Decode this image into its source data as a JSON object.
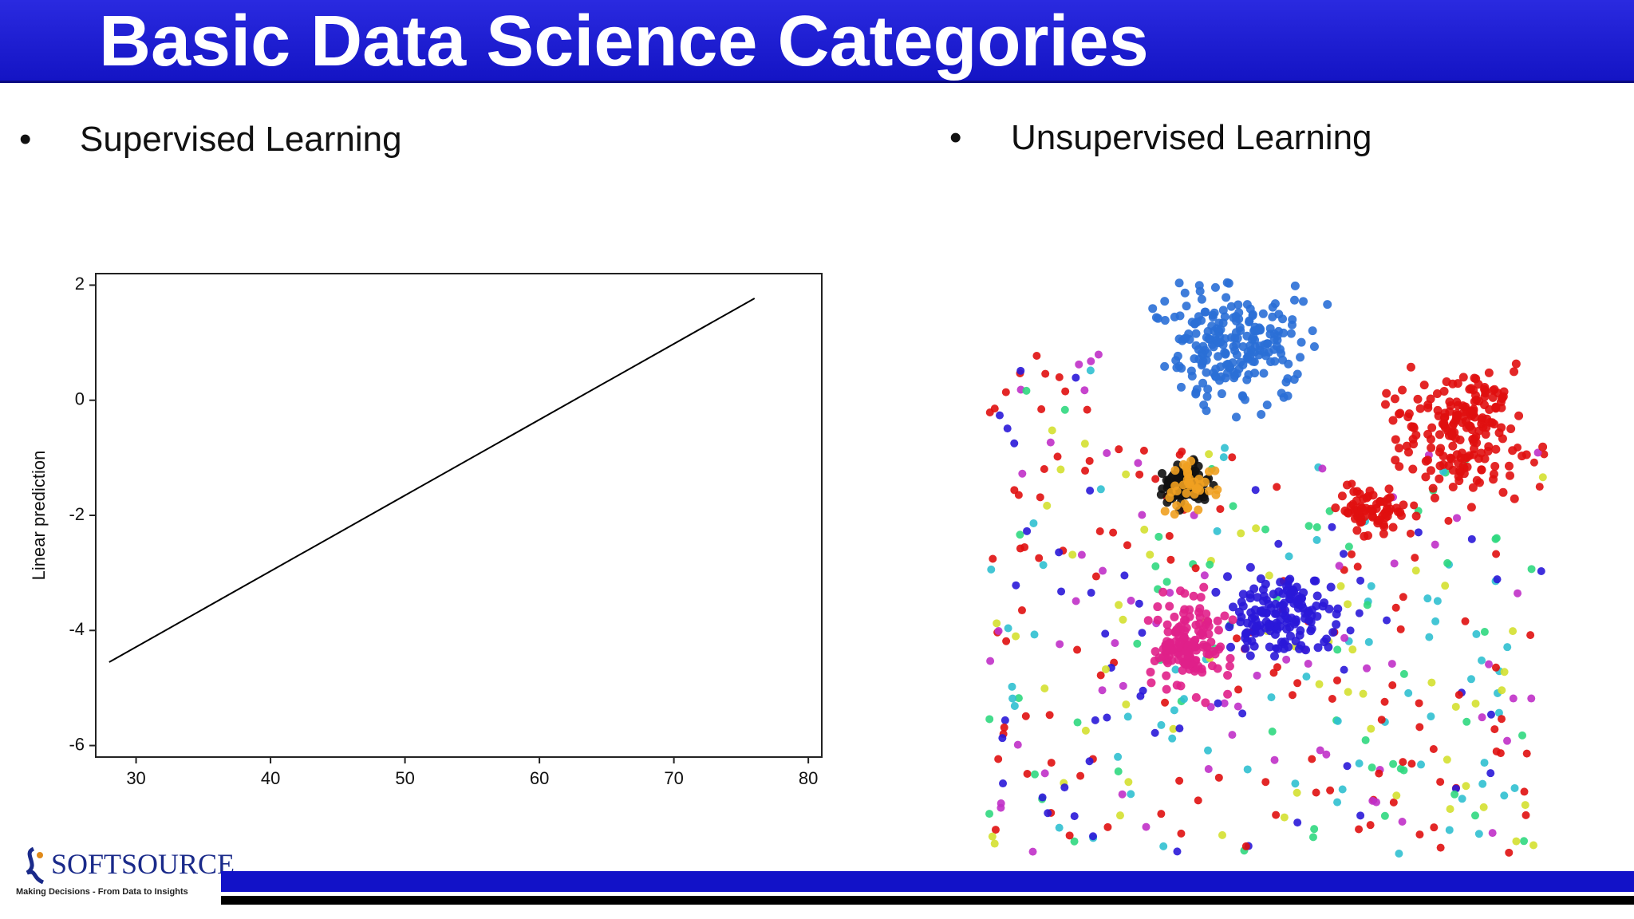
{
  "header": {
    "title": "Basic Data Science Categories"
  },
  "left": {
    "bullet": "•",
    "text": "Supervised Learning"
  },
  "right": {
    "bullet": "•",
    "text": "Unsupervised Learning"
  },
  "chart_data": {
    "type": "line",
    "ylabel": "Linear prediction",
    "x": [
      28,
      76
    ],
    "values": [
      -4.55,
      1.77
    ],
    "color": "#000000",
    "xlim": [
      27,
      81
    ],
    "ylim": [
      -6.2,
      2.2
    ],
    "xticks": [
      30,
      40,
      50,
      60,
      70,
      80
    ],
    "yticks": [
      -6,
      -4,
      -2,
      0,
      2
    ]
  },
  "footer": {
    "logo": "SOFTSOURCE",
    "tagline": "Making Decisions - From Data to Insights"
  }
}
